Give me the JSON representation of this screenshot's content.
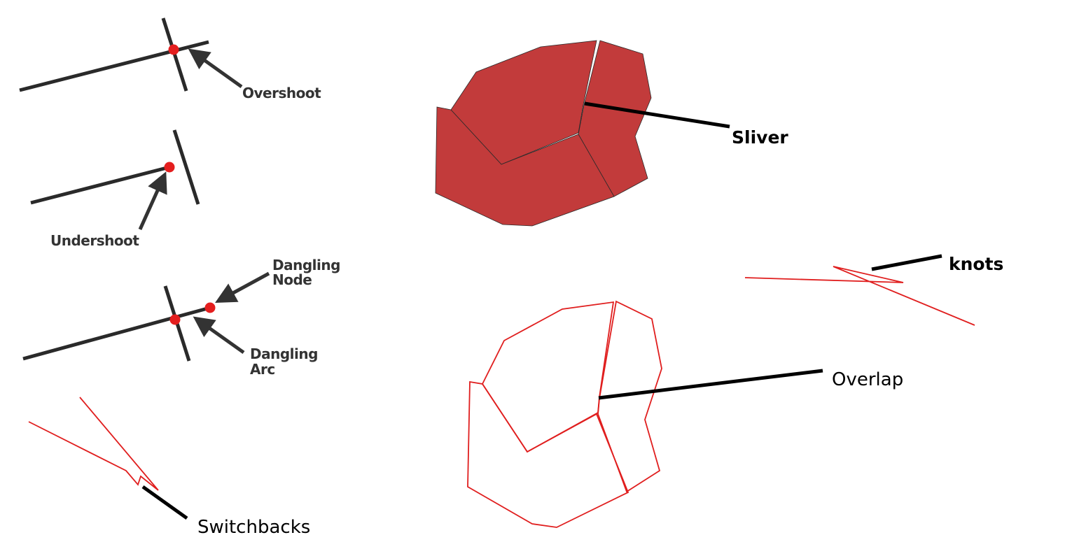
{
  "labels": {
    "overshoot": "Overshoot",
    "undershoot": "Undershoot",
    "dangling_node_line1": "Dangling",
    "dangling_node_line2": "Node",
    "dangling_arc_line1": "Dangling",
    "dangling_arc_line2": "Arc",
    "switchbacks": "Switchbacks",
    "sliver": "Sliver",
    "knots": "knots",
    "overlap": "Overlap"
  },
  "colors": {
    "line": "#2a2a2a",
    "node": "#e41e1e",
    "polygon_fill": "#c23b3b",
    "red_line": "#e01e1e",
    "leader": "#000000"
  }
}
